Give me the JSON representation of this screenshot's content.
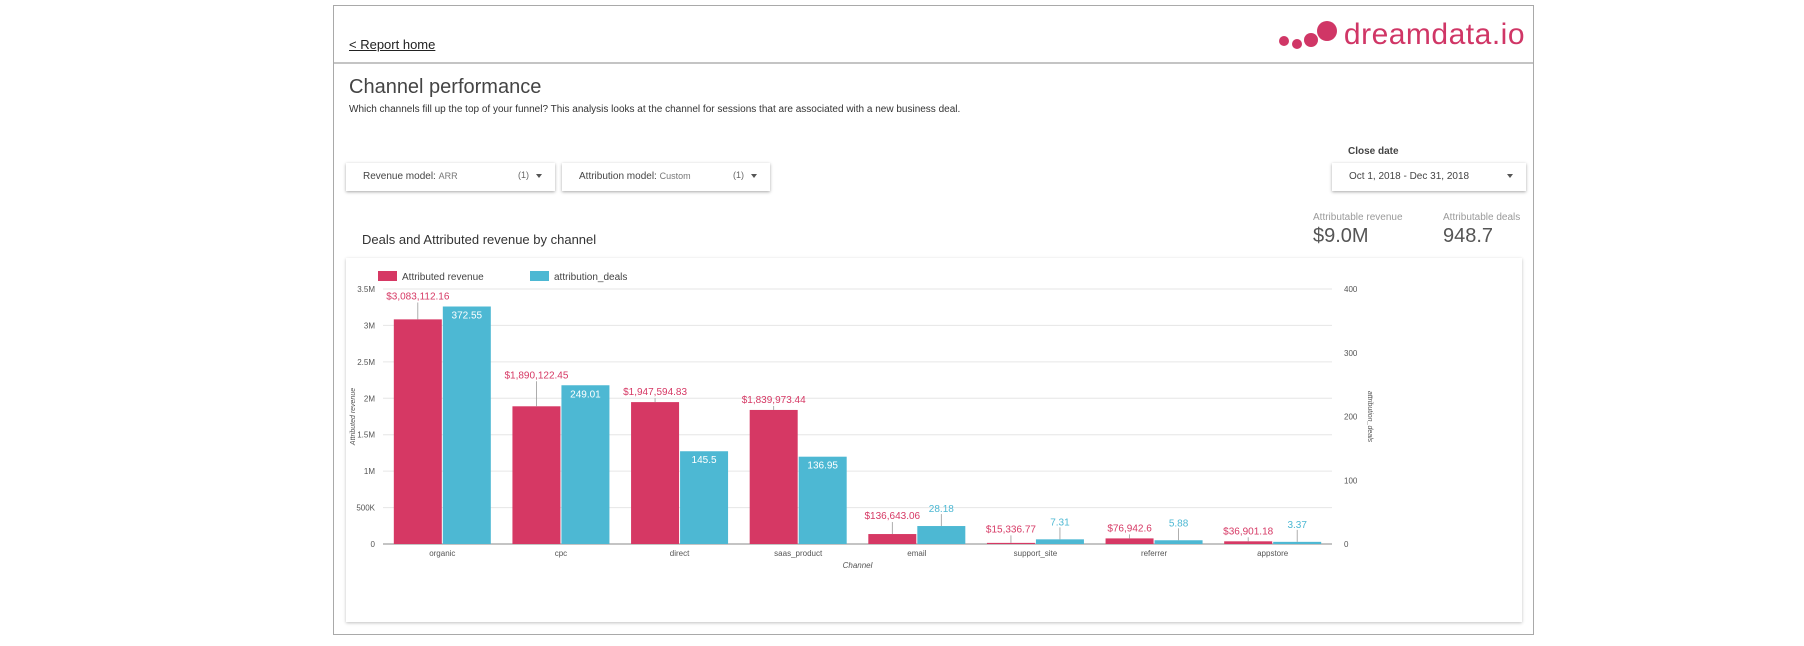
{
  "nav": {
    "report_home": "< Report home"
  },
  "logo": {
    "text": "dreamdata.io",
    "color": "#d03666"
  },
  "page": {
    "title": "Channel performance",
    "subtitle": "Which channels fill up the top of your funnel? This analysis looks at the channel for sessions that are associated with a new business deal."
  },
  "filters": {
    "revenue_model": {
      "label": "Revenue model",
      "value": "ARR",
      "count": "(1)"
    },
    "attribution_model": {
      "label": "Attribution model",
      "value": "Custom",
      "count": "(1)"
    },
    "close_date": {
      "label": "Close date",
      "value": "Oct 1, 2018 - Dec 31, 2018"
    }
  },
  "kpis": {
    "revenue": {
      "label": "Attributable revenue",
      "value": "$9.0M"
    },
    "deals": {
      "label": "Attributable deals",
      "value": "948.7"
    }
  },
  "chart_title": "Deals and Attributed revenue by channel",
  "chart_data": {
    "type": "bar",
    "categories": [
      "organic",
      "cpc",
      "direct",
      "saas_product",
      "email",
      "support_site",
      "referrer",
      "appstore"
    ],
    "series": [
      {
        "name": "Attributed revenue",
        "axis": "left",
        "color": "#d63864",
        "values": [
          3083112.16,
          1890122.45,
          1947594.83,
          1839973.44,
          136643.06,
          15336.77,
          76942.6,
          36901.18
        ],
        "labels": [
          "$3,083,112.16",
          "$1,890,122.45",
          "$1,947,594.83",
          "$1,839,973.44",
          "$136,643.06",
          "$15,336.77",
          "$76,942.6",
          "$36,901.18"
        ]
      },
      {
        "name": "attribution_deals",
        "axis": "right",
        "color": "#4db8d3",
        "values": [
          372.55,
          249.01,
          145.5,
          136.95,
          28.18,
          7.31,
          5.88,
          3.37
        ],
        "labels": [
          "372.55",
          "249.01",
          "145.5",
          "136.95",
          "28.18",
          "7.31",
          "5.88",
          "3.37"
        ]
      }
    ],
    "xlabel": "Channel",
    "ylabel": "Attributed revenue",
    "y2label": "attribution_deals",
    "ylim": [
      0,
      3500000
    ],
    "y2lim": [
      0,
      400
    ],
    "yticks": [
      0,
      500000,
      1000000,
      1500000,
      2000000,
      2500000,
      3000000,
      3500000
    ],
    "ytick_labels": [
      "0",
      "500K",
      "1M",
      "1.5M",
      "2M",
      "2.5M",
      "3M",
      "3.5M"
    ],
    "y2ticks": [
      0,
      100,
      200,
      300,
      400
    ],
    "y2tick_labels": [
      "0",
      "100",
      "200",
      "300",
      "400"
    ],
    "legend": "top-left",
    "grid": true
  }
}
